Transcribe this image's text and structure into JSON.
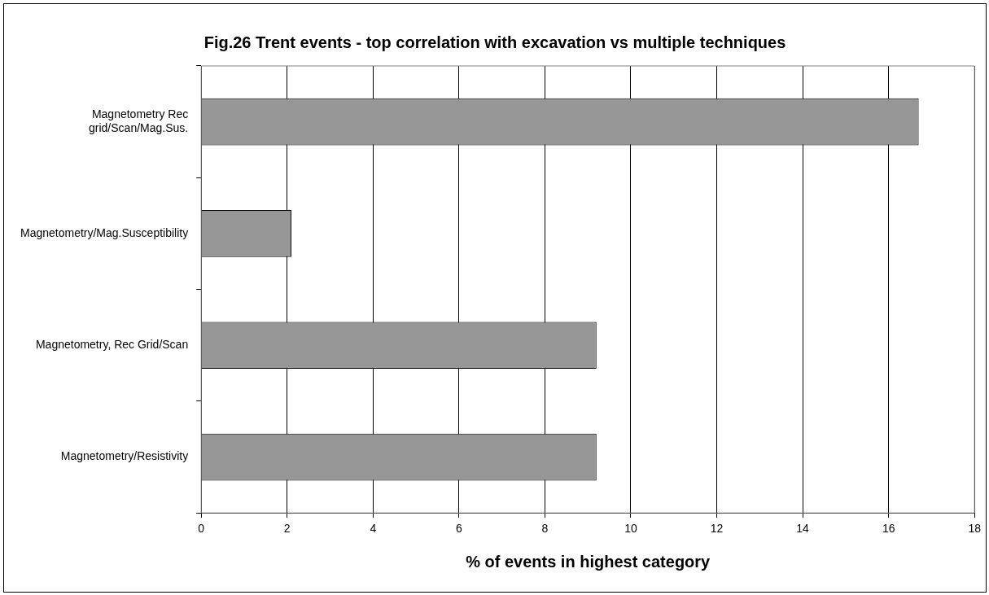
{
  "chart_data": {
    "type": "bar",
    "orientation": "horizontal",
    "title": "Fig.26 Trent events - top correlation with excavation vs multiple techniques",
    "xlabel": "% of events in highest category",
    "categories": [
      "Magnetometry Rec grid/Scan/Mag.Sus.",
      "Magnetometry/Mag.Susceptibility",
      "Magnetometry, Rec Grid/Scan",
      "Magnetometry/Resistivity"
    ],
    "values": [
      16.7,
      2.1,
      9.2,
      9.2
    ],
    "color": "#969696",
    "xlim": [
      0,
      18
    ],
    "xticks": [
      0,
      2,
      4,
      6,
      8,
      10,
      12,
      14,
      16,
      18
    ],
    "grid": "x",
    "legend": false
  }
}
